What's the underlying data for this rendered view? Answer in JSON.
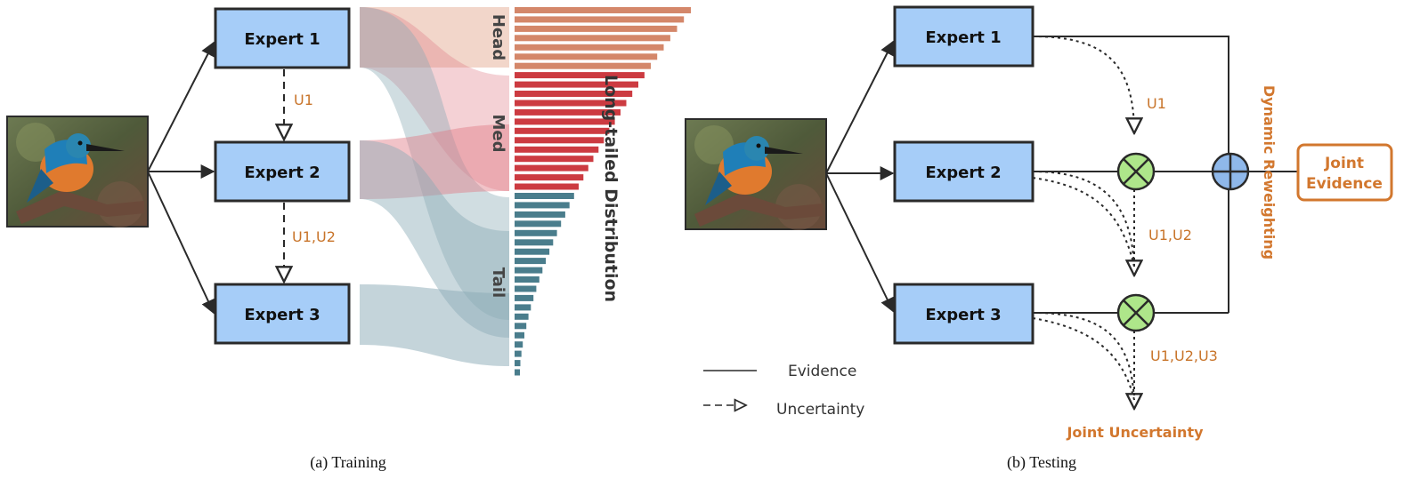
{
  "training": {
    "experts": [
      "Expert 1",
      "Expert 2",
      "Expert 3"
    ],
    "uncertainty_labels": [
      "U1",
      "U1,U2"
    ],
    "groups": [
      "Head",
      "Med",
      "Tail"
    ],
    "distribution_label": "Long-tailed Distribution",
    "caption": "(a) Training"
  },
  "testing": {
    "experts": [
      "Expert 1",
      "Expert 2",
      "Expert 3"
    ],
    "uncertainty_labels": [
      "U1",
      "U1,U2",
      "U1,U2,U3"
    ],
    "joint_uncertainty": "Joint Uncertainty",
    "dynamic_reweighting": "Dynamic Reweighting",
    "joint_evidence": [
      "Joint",
      "Evidence"
    ],
    "caption": "(b) Testing"
  },
  "legend": {
    "evidence": "Evidence",
    "uncertainty": "Uncertainty"
  },
  "colors": {
    "expert_fill": "#a6cdf8",
    "head": "#d4876a",
    "med": "#cc3b41",
    "tail": "#4a7d8c",
    "accent": "#d2772e",
    "combine_green": "#aee68a",
    "add_blue": "#8fb8ea"
  }
}
